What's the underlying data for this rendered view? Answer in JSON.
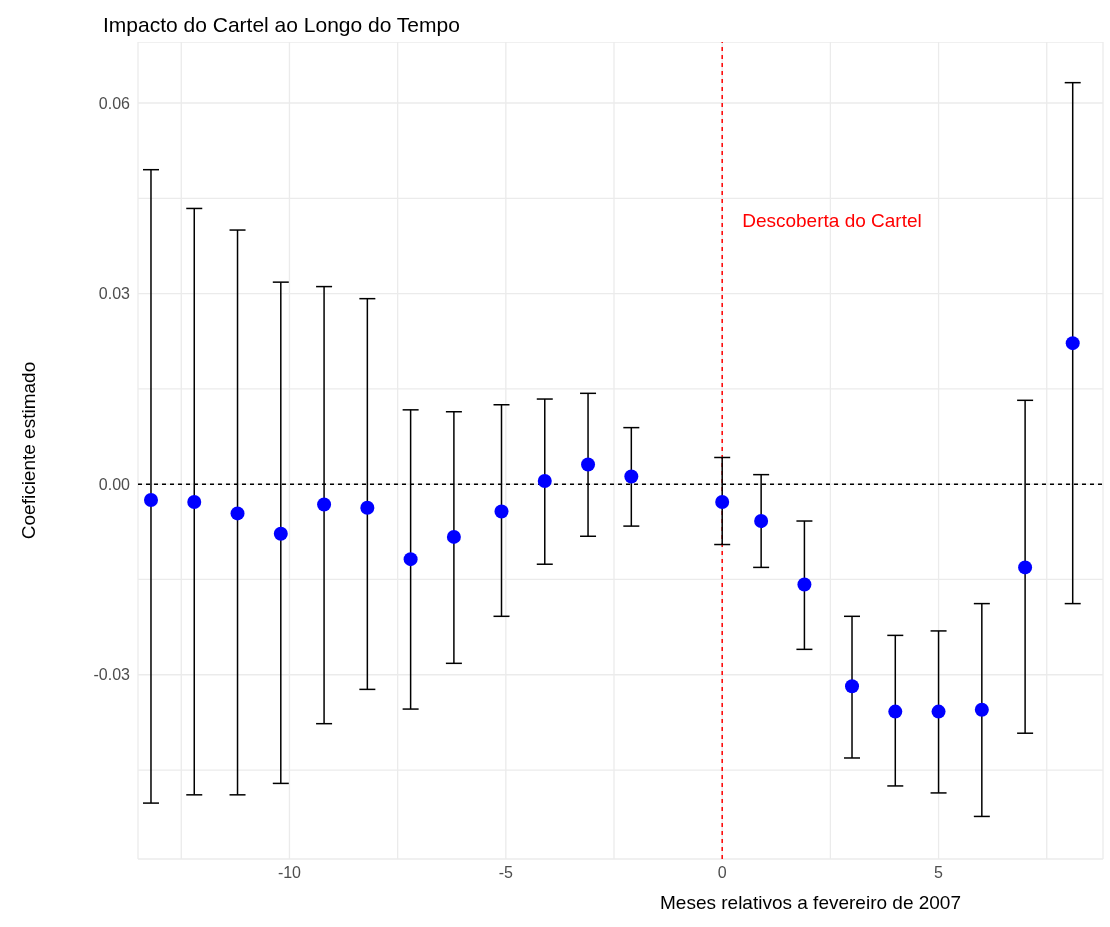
{
  "chart_data": {
    "type": "scatter",
    "title": "Impacto do Cartel ao Longo do Tempo",
    "xlabel": "Meses relativos a fevereiro de 2007",
    "ylabel": "Coeficiente estimado",
    "x": [
      -13.2,
      -12.2,
      -11.2,
      -10.2,
      -9.2,
      -8.2,
      -7.2,
      -6.2,
      -5.1,
      -4.1,
      -3.1,
      -2.1,
      0,
      0.9,
      1.9,
      3,
      4,
      5,
      6,
      7,
      8.1
    ],
    "series": [
      {
        "color": "#0000ff",
        "values": [
          -0.0025,
          -0.0028,
          -0.0046,
          -0.0078,
          -0.0032,
          -0.0037,
          -0.0118,
          -0.0083,
          -0.0043,
          0.0005,
          0.0031,
          0.0012,
          -0.0028,
          -0.0058,
          -0.0158,
          -0.0318,
          -0.0358,
          -0.0358,
          -0.0355,
          -0.0131,
          0.0222
        ],
        "errors": [
          [
            -0.0502,
            0.0495
          ],
          [
            -0.0489,
            0.0434
          ],
          [
            -0.0489,
            0.04
          ],
          [
            -0.0471,
            0.0318
          ],
          [
            -0.0377,
            0.0311
          ],
          [
            -0.0323,
            0.0292
          ],
          [
            -0.0354,
            0.0117
          ],
          [
            -0.0282,
            0.0114
          ],
          [
            -0.0208,
            0.0125
          ],
          [
            -0.0126,
            0.0134
          ],
          [
            -0.0082,
            0.0143
          ],
          [
            -0.0066,
            0.0089
          ],
          [
            -0.0095,
            0.0042
          ],
          [
            -0.0131,
            0.0015
          ],
          [
            -0.026,
            -0.0058
          ],
          [
            -0.0431,
            -0.0208
          ],
          [
            -0.0475,
            -0.0238
          ],
          [
            -0.0486,
            -0.0231
          ],
          [
            -0.0523,
            -0.0188
          ],
          [
            -0.0392,
            0.0132
          ],
          [
            -0.0188,
            0.0632
          ]
        ]
      }
    ],
    "xlim": [
      -13.5,
      8.8
    ],
    "ylim": [
      -0.059,
      0.0696
    ],
    "xticks": [
      {
        "value": -12.5,
        "label": null
      },
      -10,
      {
        "value": -7.5,
        "label": null
      },
      -5,
      {
        "value": -2.5,
        "label": null
      },
      0,
      {
        "value": 2.5,
        "label": null
      },
      5,
      {
        "value": 7.5,
        "label": null
      }
    ],
    "yticks": [
      {
        "value": -0.045,
        "label": null
      },
      {
        "value": -0.03,
        "label": "-0.03"
      },
      {
        "value": -0.015,
        "label": null
      },
      {
        "value": 0,
        "label": "0.00"
      },
      {
        "value": 0.015,
        "label": null
      },
      {
        "value": 0.03,
        "label": "0.03"
      },
      {
        "value": 0.045,
        "label": null
      },
      {
        "value": 0.06,
        "label": "0.06"
      }
    ],
    "ref_lines": [
      {
        "axis": "y",
        "value": 0,
        "color": "#000000",
        "line_style": "dashed"
      },
      {
        "axis": "x",
        "value": 0,
        "label": "Descoberta do Cartel",
        "color": "#ff0000",
        "line_style": "dashed"
      }
    ],
    "grid": true,
    "marker": "circle"
  }
}
